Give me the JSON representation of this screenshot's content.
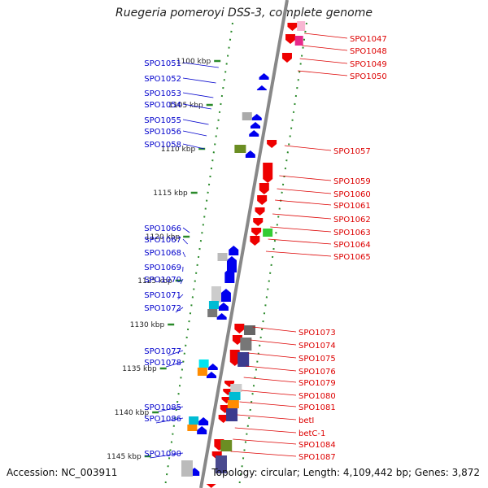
{
  "title": "Ruegeria pomeroyi DSS-3, complete genome",
  "accession": "Accession: NC_003911",
  "topology": "Topology: circular; Length: 4,109,442 bp; Genes: 3,872",
  "colors": {
    "forward_gene": "#0000ee",
    "reverse_gene": "#ee0000",
    "left_label": "#0000cc",
    "right_label": "#dd0000",
    "backbone": "#888888",
    "tick": "#2a8a2a"
  },
  "ticks": [
    {
      "label": "1100 kbp"
    },
    {
      "label": "1105 kbp"
    },
    {
      "label": "1110 kbp"
    },
    {
      "label": "1115 kbp"
    },
    {
      "label": "1120 kbp"
    },
    {
      "label": "1125 kbp"
    },
    {
      "label": "1130 kbp"
    },
    {
      "label": "1135 kbp"
    },
    {
      "label": "1140 kbp"
    },
    {
      "label": "1145 kbp"
    }
  ],
  "left_genes": [
    "SPO1051",
    "SPO1052",
    "SPO1053",
    "SPO1054",
    "SPO1055",
    "SPO1056",
    "SPO1058",
    "SPO1066",
    "SPO1067",
    "SPO1068",
    "SPO1069",
    "SPO1070",
    "SPO1071",
    "SPO1072",
    "SPO1077",
    "SPO1078",
    "SPO1085",
    "SPO1086",
    "SPO1090"
  ],
  "right_genes": [
    "SPO1047",
    "SPO1048",
    "SPO1049",
    "SPO1050",
    "SPO1057",
    "SPO1059",
    "SPO1060",
    "SPO1061",
    "SPO1062",
    "SPO1063",
    "SPO1064",
    "SPO1065",
    "SPO1073",
    "SPO1074",
    "SPO1075",
    "SPO1076",
    "SPO1079",
    "SPO1080",
    "SPO1081",
    "betI",
    "betC-1",
    "SPO1084",
    "SPO1087"
  ]
}
